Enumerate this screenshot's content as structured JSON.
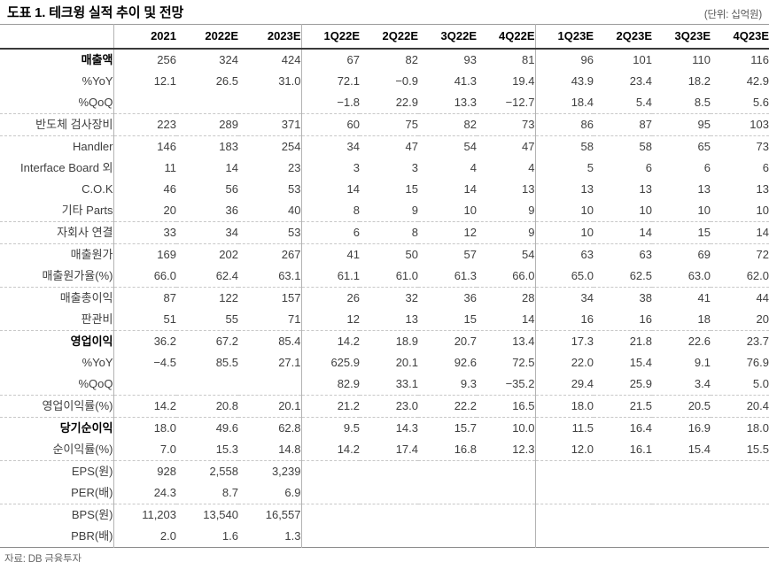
{
  "title": "도표 1. 테크윙 실적 추이 및 전망",
  "unit": "(단위: 십억원)",
  "source": "자료: DB 금융투자",
  "table": {
    "columns": [
      "2021",
      "2022E",
      "2023E",
      "1Q22E",
      "2Q22E",
      "3Q22E",
      "4Q22E",
      "1Q23E",
      "2Q23E",
      "3Q23E",
      "4Q23E"
    ],
    "rows": [
      {
        "label": "매출액",
        "bold": true,
        "indent": 0,
        "sep": false,
        "values": [
          "256",
          "324",
          "424",
          "67",
          "82",
          "93",
          "81",
          "96",
          "101",
          "110",
          "116"
        ]
      },
      {
        "label": "%YoY",
        "bold": false,
        "indent": 1,
        "sep": false,
        "values": [
          "12.1",
          "26.5",
          "31.0",
          "72.1",
          "−0.9",
          "41.3",
          "19.4",
          "43.9",
          "23.4",
          "18.2",
          "42.9"
        ]
      },
      {
        "label": "%QoQ",
        "bold": false,
        "indent": 1,
        "sep": false,
        "values": [
          "",
          "",
          "",
          "−1.8",
          "22.9",
          "13.3",
          "−12.7",
          "18.4",
          "5.4",
          "8.5",
          "5.6"
        ]
      },
      {
        "label": "반도체 검사장비",
        "bold": false,
        "indent": 0,
        "sep": true,
        "values": [
          "223",
          "289",
          "371",
          "60",
          "75",
          "82",
          "73",
          "86",
          "87",
          "95",
          "103"
        ]
      },
      {
        "label": "Handler",
        "bold": false,
        "indent": 1,
        "sep": true,
        "values": [
          "146",
          "183",
          "254",
          "34",
          "47",
          "54",
          "47",
          "58",
          "58",
          "65",
          "73"
        ]
      },
      {
        "label": "Interface Board 외",
        "bold": false,
        "indent": 1,
        "sep": false,
        "values": [
          "11",
          "14",
          "23",
          "3",
          "3",
          "4",
          "4",
          "5",
          "6",
          "6",
          "6"
        ]
      },
      {
        "label": "C.O.K",
        "bold": false,
        "indent": 1,
        "sep": false,
        "values": [
          "46",
          "56",
          "53",
          "14",
          "15",
          "14",
          "13",
          "13",
          "13",
          "13",
          "13"
        ]
      },
      {
        "label": "기타 Parts",
        "bold": false,
        "indent": 1,
        "sep": false,
        "values": [
          "20",
          "36",
          "40",
          "8",
          "9",
          "10",
          "9",
          "10",
          "10",
          "10",
          "10"
        ]
      },
      {
        "label": "자회사 연결",
        "bold": false,
        "indent": 0,
        "sep": true,
        "values": [
          "33",
          "34",
          "53",
          "6",
          "8",
          "12",
          "9",
          "10",
          "14",
          "15",
          "14"
        ]
      },
      {
        "label": "매출원가",
        "bold": false,
        "indent": 0,
        "sep": true,
        "values": [
          "169",
          "202",
          "267",
          "41",
          "50",
          "57",
          "54",
          "63",
          "63",
          "69",
          "72"
        ]
      },
      {
        "label": "매출원가율(%)",
        "bold": false,
        "indent": 1,
        "sep": false,
        "values": [
          "66.0",
          "62.4",
          "63.1",
          "61.1",
          "61.0",
          "61.3",
          "66.0",
          "65.0",
          "62.5",
          "63.0",
          "62.0"
        ]
      },
      {
        "label": "매출총이익",
        "bold": false,
        "indent": 0,
        "sep": true,
        "values": [
          "87",
          "122",
          "157",
          "26",
          "32",
          "36",
          "28",
          "34",
          "38",
          "41",
          "44"
        ]
      },
      {
        "label": "판관비",
        "bold": false,
        "indent": 0,
        "sep": false,
        "values": [
          "51",
          "55",
          "71",
          "12",
          "13",
          "15",
          "14",
          "16",
          "16",
          "18",
          "20"
        ]
      },
      {
        "label": "영업이익",
        "bold": true,
        "indent": 0,
        "sep": true,
        "values": [
          "36.2",
          "67.2",
          "85.4",
          "14.2",
          "18.9",
          "20.7",
          "13.4",
          "17.3",
          "21.8",
          "22.6",
          "23.7"
        ]
      },
      {
        "label": "%YoY",
        "bold": false,
        "indent": 1,
        "sep": false,
        "values": [
          "−4.5",
          "85.5",
          "27.1",
          "625.9",
          "20.1",
          "92.6",
          "72.5",
          "22.0",
          "15.4",
          "9.1",
          "76.9"
        ]
      },
      {
        "label": "%QoQ",
        "bold": false,
        "indent": 1,
        "sep": false,
        "values": [
          "",
          "",
          "",
          "82.9",
          "33.1",
          "9.3",
          "−35.2",
          "29.4",
          "25.9",
          "3.4",
          "5.0"
        ]
      },
      {
        "label": "영업이익률(%)",
        "bold": false,
        "indent": 1,
        "sep": true,
        "values": [
          "14.2",
          "20.8",
          "20.1",
          "21.2",
          "23.0",
          "22.2",
          "16.5",
          "18.0",
          "21.5",
          "20.5",
          "20.4"
        ]
      },
      {
        "label": "당기순이익",
        "bold": true,
        "indent": 0,
        "sep": true,
        "values": [
          "18.0",
          "49.6",
          "62.8",
          "9.5",
          "14.3",
          "15.7",
          "10.0",
          "11.5",
          "16.4",
          "16.9",
          "18.0"
        ]
      },
      {
        "label": "순이익률(%)",
        "bold": false,
        "indent": 1,
        "sep": false,
        "values": [
          "7.0",
          "15.3",
          "14.8",
          "14.2",
          "17.4",
          "16.8",
          "12.3",
          "12.0",
          "16.1",
          "15.4",
          "15.5"
        ]
      },
      {
        "label": "EPS(원)",
        "bold": false,
        "indent": 0,
        "sep": true,
        "values": [
          "928",
          "2,558",
          "3,239",
          "",
          "",
          "",
          "",
          "",
          "",
          "",
          ""
        ]
      },
      {
        "label": "PER(배)",
        "bold": false,
        "indent": 1,
        "sep": false,
        "values": [
          "24.3",
          "8.7",
          "6.9",
          "",
          "",
          "",
          "",
          "",
          "",
          "",
          ""
        ]
      },
      {
        "label": "BPS(원)",
        "bold": false,
        "indent": 0,
        "sep": true,
        "values": [
          "11,203",
          "13,540",
          "16,557",
          "",
          "",
          "",
          "",
          "",
          "",
          "",
          ""
        ]
      },
      {
        "label": "PBR(배)",
        "bold": false,
        "indent": 1,
        "sep": false,
        "values": [
          "2.0",
          "1.6",
          "1.3",
          "",
          "",
          "",
          "",
          "",
          "",
          "",
          ""
        ]
      }
    ]
  }
}
